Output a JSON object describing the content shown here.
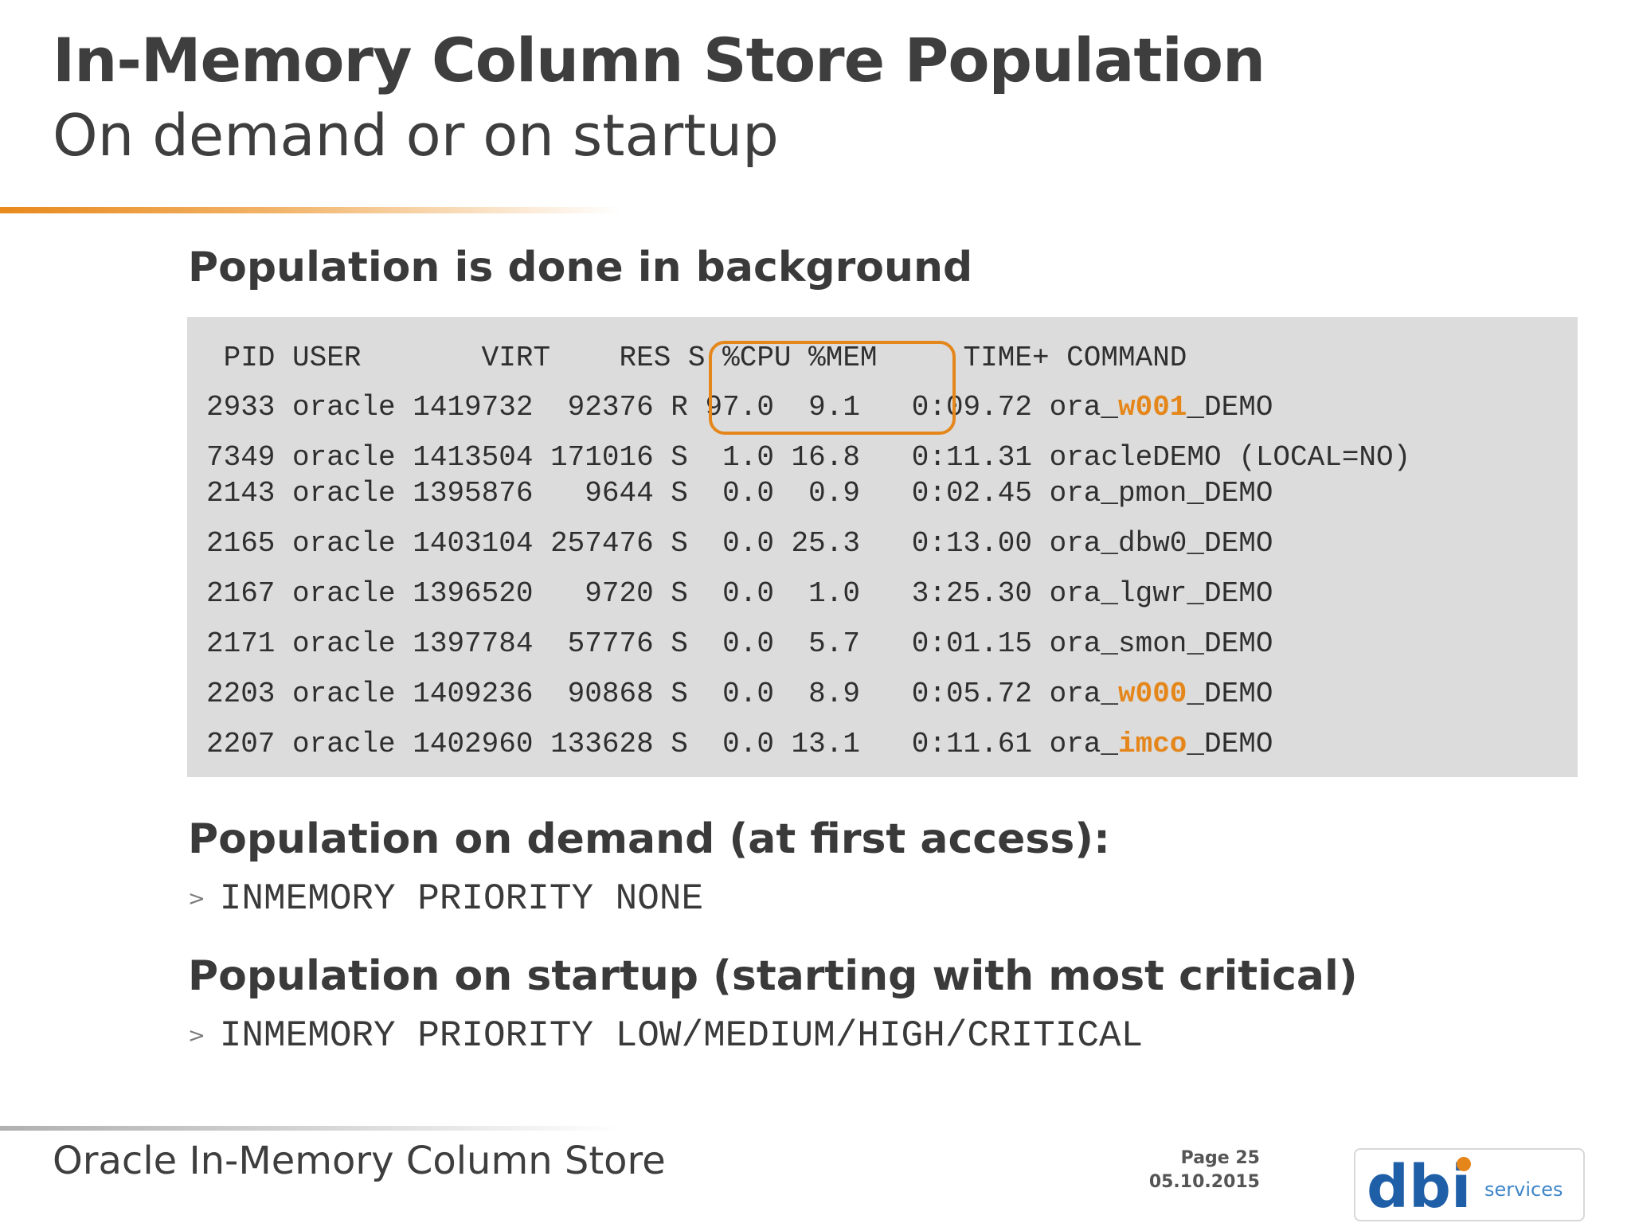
{
  "slide": {
    "title": "In-Memory Column Store Population",
    "subtitle": "On demand or on startup"
  },
  "sections": {
    "background": {
      "heading": "Population is done in background"
    },
    "on_demand": {
      "heading": "Population on demand (at first access):",
      "bullet": ">",
      "code": "INMEMORY PRIORITY NONE"
    },
    "on_startup": {
      "heading": "Population on startup (starting with most critical)",
      "bullet": ">",
      "code": "INMEMORY PRIORITY LOW/MEDIUM/HIGH/CRITICAL"
    }
  },
  "top_output": {
    "header": " PID USER       VIRT    RES S %CPU %MEM     TIME+ COMMAND",
    "rows": [
      {
        "prefix": "2933 oracle 1419732  92376 R 97.0  9.1   0:09.72 ora_",
        "hl": "w001",
        "suffix": "_DEMO"
      },
      {
        "prefix": "7349 oracle 1413504 171016 S  1.0 16.8   0:11.31 oracleDEMO (LOCAL=NO)",
        "hl": "",
        "suffix": ""
      },
      {
        "prefix": "2143 oracle 1395876   9644 S  0.0  0.9   0:02.45 ora_pmon_DEMO",
        "hl": "",
        "suffix": ""
      },
      {
        "prefix": "2165 oracle 1403104 257476 S  0.0 25.3   0:13.00 ora_dbw0_DEMO",
        "hl": "",
        "suffix": ""
      },
      {
        "prefix": "2167 oracle 1396520   9720 S  0.0  1.0   3:25.30 ora_lgwr_DEMO",
        "hl": "",
        "suffix": ""
      },
      {
        "prefix": "2171 oracle 1397784  57776 S  0.0  5.7   0:01.15 ora_smon_DEMO",
        "hl": "",
        "suffix": ""
      },
      {
        "prefix": "2203 oracle 1409236  90868 S  0.0  8.9   0:05.72 ora_",
        "hl": "w000",
        "suffix": "_DEMO"
      },
      {
        "prefix": "2207 oracle 1402960 133628 S  0.0 13.1   0:11.61 ora_",
        "hl": "imco",
        "suffix": "_DEMO"
      }
    ]
  },
  "footer": {
    "title": "Oracle In-Memory Column Store",
    "page": "Page 25",
    "date": "05.10.2015"
  },
  "logo": {
    "brand": "dbi",
    "tagline": "services",
    "colors": {
      "dark": "#1f5fa8",
      "light": "#3f86c8",
      "accent": "#e5861b"
    }
  },
  "colors": {
    "accent": "#e5861b",
    "terminal_bg": "#dcdcdc",
    "text": "#3e3e3e"
  }
}
